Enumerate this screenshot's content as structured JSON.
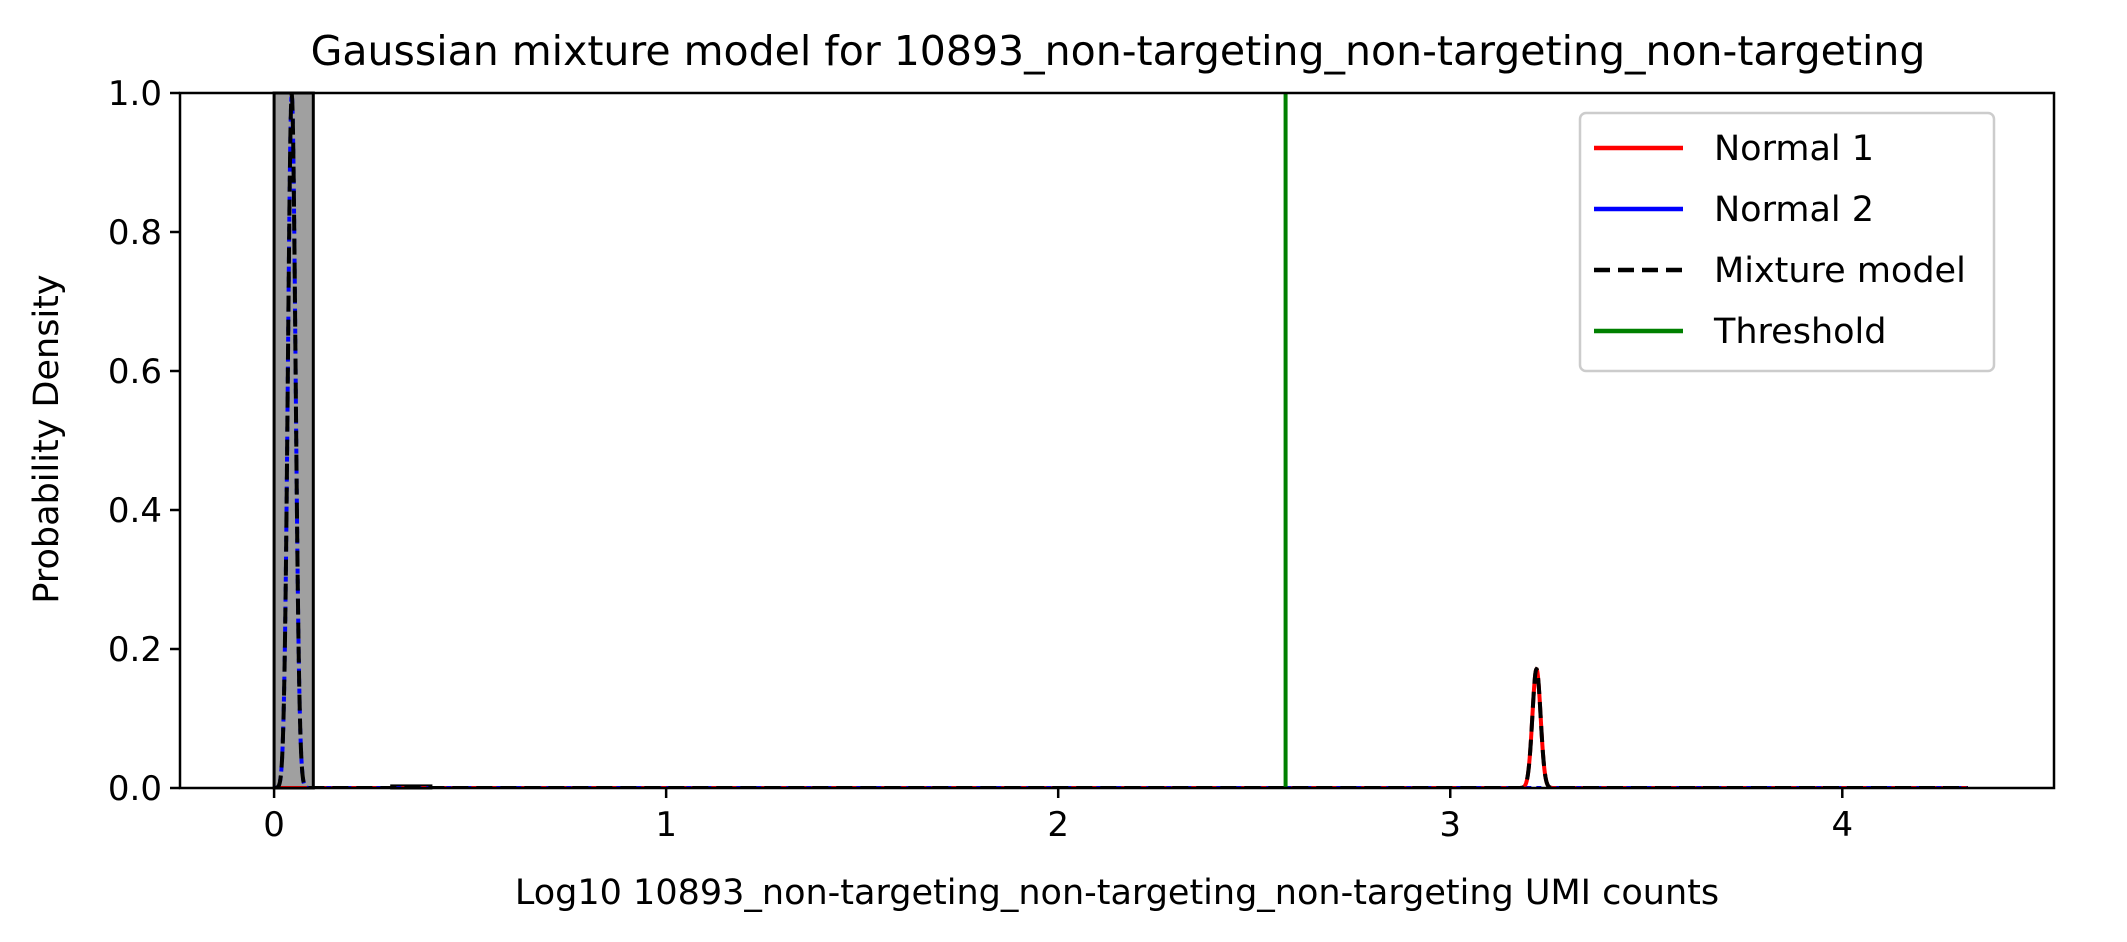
{
  "chart_data": {
    "type": "line",
    "title": "Gaussian mixture model for 10893_non-targeting_non-targeting_non-targeting",
    "xlabel": "Log10 10893_non-targeting_non-targeting_non-targeting UMI counts",
    "ylabel": "Probability Density",
    "xlim": [
      -0.24,
      4.54
    ],
    "ylim": [
      0,
      1.0
    ],
    "x_ticks": [
      0,
      1,
      2,
      3,
      4
    ],
    "x_tick_labels": [
      "0",
      "1",
      "2",
      "3",
      "4"
    ],
    "y_ticks": [
      0.0,
      0.2,
      0.4,
      0.6,
      0.8,
      1.0
    ],
    "y_tick_labels": [
      "0.0",
      "0.2",
      "0.4",
      "0.6",
      "0.8",
      "1.0"
    ],
    "grid": false,
    "legend_position": "top-right",
    "histogram": {
      "color": "#a0a0a0",
      "bins": [
        {
          "x0": 0.0,
          "x1": 0.1,
          "density": 1.0
        },
        {
          "x0": 0.3,
          "x1": 0.4,
          "density": 0.003
        }
      ]
    },
    "x_range": [
      0.0,
      4.32
    ],
    "series": [
      {
        "name": "Normal 1",
        "color": "#ff0000",
        "dash": "solid",
        "weight": 0.0045,
        "mean": 3.22,
        "sd": 0.0105
      },
      {
        "name": "Normal 2",
        "color": "#0000ff",
        "dash": "dotted",
        "weight": 0.0245,
        "mean": 0.045,
        "sd": 0.0098
      },
      {
        "name": "Mixture model",
        "color": "#000000",
        "dash": "dashed",
        "components": [
          "Normal 1",
          "Normal 2"
        ]
      },
      {
        "name": "Threshold",
        "color": "#008000",
        "dash": "solid",
        "x": 2.58
      }
    ]
  }
}
